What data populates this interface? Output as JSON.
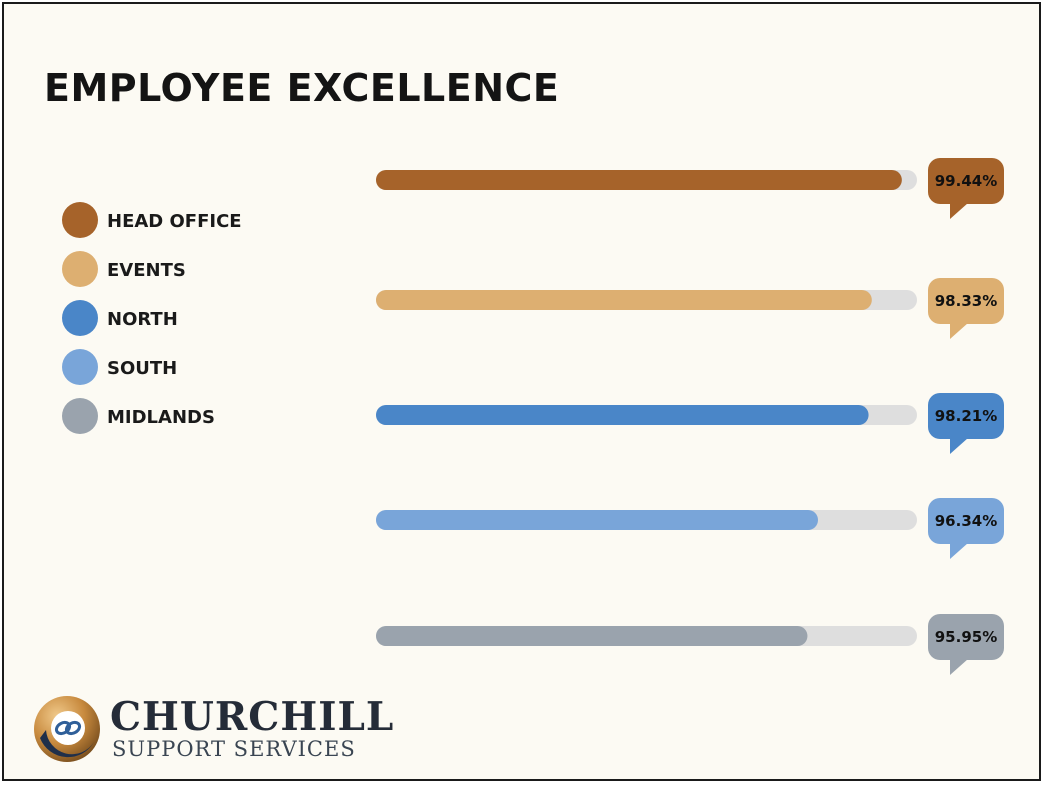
{
  "chart_data": {
    "type": "bar",
    "title": "EMPLOYEE EXCELLENCE",
    "categories": [
      "HEAD OFFICE",
      "EVENTS",
      "NORTH",
      "SOUTH",
      "MIDLANDS"
    ],
    "values": [
      99.44,
      98.33,
      98.21,
      96.34,
      95.95
    ],
    "value_labels": [
      "99.44%",
      "98.33%",
      "98.21%",
      "96.34%",
      "95.95%"
    ],
    "colors": [
      "#a6632a",
      "#ddaf71",
      "#4a86c8",
      "#79a5d9",
      "#9aa3ad"
    ],
    "track_color": "#dedede",
    "orientation": "horizontal",
    "xlim": [
      0,
      100
    ],
    "grid": false,
    "legend": {
      "placement": "left",
      "entries": [
        "HEAD OFFICE",
        "EVENTS",
        "NORTH",
        "SOUTH",
        "MIDLANDS"
      ]
    },
    "data_label_style": "speech-bubble"
  },
  "brand": {
    "name": "CHURCHILL",
    "tagline": "SUPPORT SERVICES",
    "colors": [
      "#c88a3e",
      "#2f5f99",
      "#1f2f4a"
    ]
  }
}
